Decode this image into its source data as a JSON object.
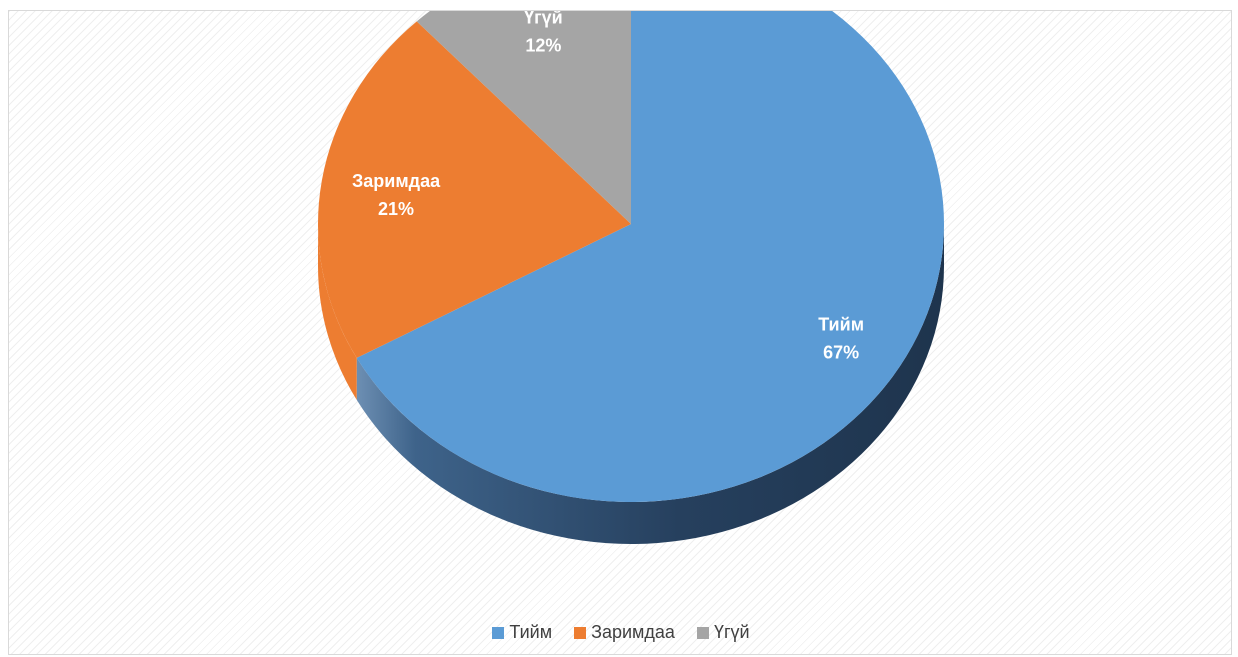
{
  "chart_data": {
    "type": "pie",
    "title": "",
    "categories": [
      "Тийм",
      "Заримдаа",
      "Үгүй"
    ],
    "values": [
      67,
      21,
      12
    ],
    "labels": [
      "67%",
      "21%",
      "12%"
    ],
    "colors": [
      "#5b9bd5",
      "#ed7d31",
      "#a5a5a5"
    ],
    "legend_position": "bottom",
    "style": "3d"
  }
}
